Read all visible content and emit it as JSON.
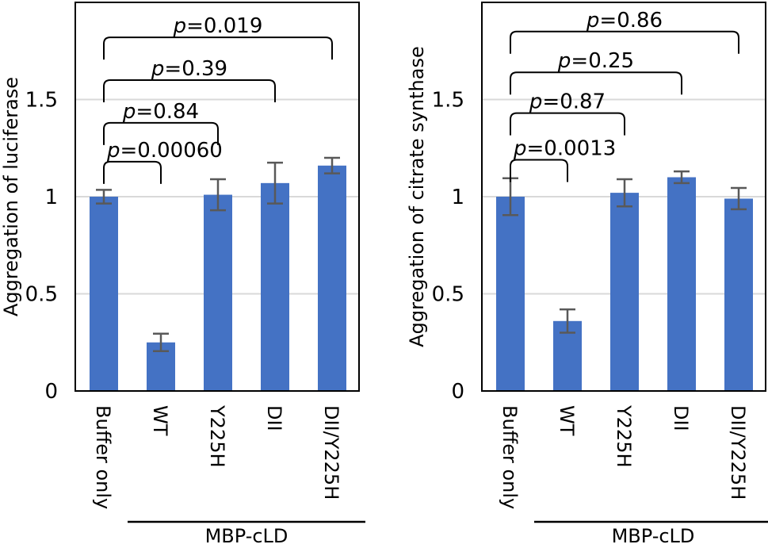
{
  "chart_data": [
    {
      "type": "bar",
      "categories": [
        "Buffer only",
        "WT",
        "Y225H",
        "DII",
        "DII/Y225H"
      ],
      "values": [
        1.0,
        0.25,
        1.01,
        1.07,
        1.16
      ],
      "errors": [
        0.035,
        0.045,
        0.08,
        0.105,
        0.04
      ],
      "ylabel": "Aggregation of luciferase",
      "ylim": [
        0,
        2
      ],
      "yticks": [
        "0",
        "0.5",
        "1",
        "1.5"
      ],
      "ytick_values": [
        0,
        0.5,
        1,
        1.5
      ],
      "group_label": "MBP-cLD",
      "group_span": [
        1,
        4
      ],
      "bar_color": "#4472C4",
      "comparisons": [
        {
          "from": 0,
          "to": 1,
          "p": "0.00060",
          "y": 1.18
        },
        {
          "from": 0,
          "to": 2,
          "p": "0.84",
          "y": 1.38
        },
        {
          "from": 0,
          "to": 3,
          "p": "0.39",
          "y": 1.6
        },
        {
          "from": 0,
          "to": 4,
          "p": "0.019",
          "y": 1.82
        }
      ]
    },
    {
      "type": "bar",
      "categories": [
        "Buffer only",
        "WT",
        "Y225H",
        "DII",
        "DII/Y225H"
      ],
      "values": [
        1.0,
        0.36,
        1.02,
        1.1,
        0.99
      ],
      "errors": [
        0.095,
        0.06,
        0.07,
        0.03,
        0.055
      ],
      "ylabel": "Aggregation of citrate synthase",
      "ylim": [
        0,
        2
      ],
      "yticks": [
        "0",
        "0.5",
        "1",
        "1.5"
      ],
      "ytick_values": [
        0,
        0.5,
        1,
        1.5
      ],
      "group_label": "MBP-cLD",
      "group_span": [
        1,
        4
      ],
      "bar_color": "#4472C4",
      "comparisons": [
        {
          "from": 0,
          "to": 1,
          "p": "0.0013",
          "y": 1.19
        },
        {
          "from": 0,
          "to": 2,
          "p": "0.87",
          "y": 1.43
        },
        {
          "from": 0,
          "to": 3,
          "p": "0.25",
          "y": 1.64
        },
        {
          "from": 0,
          "to": 4,
          "p": "0.86",
          "y": 1.85
        }
      ]
    }
  ]
}
